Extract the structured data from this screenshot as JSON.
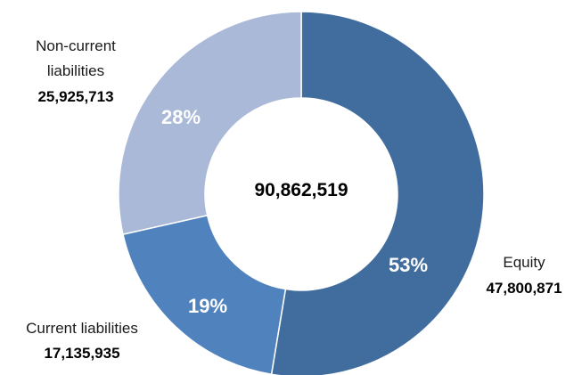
{
  "chart_data": {
    "type": "pie",
    "variant": "donut",
    "center_label": "90,862,519",
    "slices": [
      {
        "name": "Equity",
        "value_label": "47,800,871",
        "value": 47800871,
        "percent": 53,
        "percent_label": "53%",
        "color": "#416D9E"
      },
      {
        "name": "Current liabilities",
        "value_label": "17,135,935",
        "value": 17135935,
        "percent": 19,
        "percent_label": "19%",
        "color": "#5082BE"
      },
      {
        "name": "Non-current liabilities",
        "name_lines": [
          "Non-current",
          "liabilities"
        ],
        "value_label": "25,925,713",
        "value": 25925713,
        "percent": 28,
        "percent_label": "28%",
        "color": "#A9B9D7"
      }
    ]
  }
}
